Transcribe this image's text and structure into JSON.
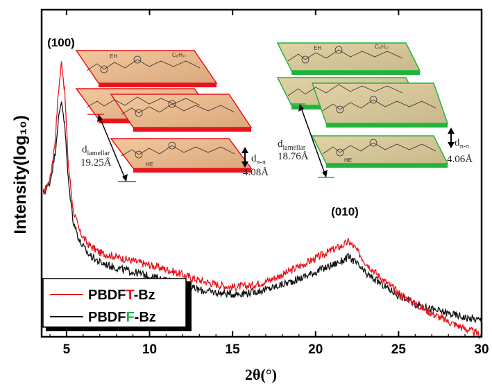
{
  "chart_data": {
    "type": "line",
    "xlabel": "2θ(°)",
    "ylabel": "Intensity(log₁₀)",
    "xlim": [
      3.5,
      30
    ],
    "xticks": [
      5,
      10,
      15,
      20,
      25,
      30
    ],
    "y_scale": "log",
    "y_tick_labels": "none",
    "grid": false,
    "legend_position": "bottom-left",
    "peak_labels": [
      {
        "text": "(100)",
        "x": 4.7
      },
      {
        "text": "(010)",
        "x": 22.0
      }
    ],
    "series": [
      {
        "name_prefix": "PBDF",
        "name_highlight": "T",
        "name_suffix": "-Bz",
        "color": "#e8141b",
        "highlight_color": "#e8141b",
        "x": [
          3.6,
          4.0,
          4.3,
          4.5,
          4.7,
          4.9,
          5.1,
          5.4,
          5.8,
          6.3,
          7,
          8,
          9,
          10,
          11,
          12,
          13,
          14,
          15,
          16,
          17,
          18,
          19,
          20,
          21,
          21.6,
          22.0,
          22.4,
          23,
          24,
          25,
          26,
          27,
          28,
          29,
          30
        ],
        "y": [
          0.52,
          0.57,
          0.7,
          0.88,
          1.0,
          0.88,
          0.63,
          0.46,
          0.38,
          0.335,
          0.305,
          0.29,
          0.275,
          0.26,
          0.245,
          0.225,
          0.205,
          0.19,
          0.18,
          0.185,
          0.2,
          0.225,
          0.255,
          0.285,
          0.315,
          0.33,
          0.345,
          0.32,
          0.27,
          0.21,
          0.16,
          0.12,
          0.085,
          0.055,
          0.03,
          0.005
        ]
      },
      {
        "name_prefix": "PBDF",
        "name_highlight": "F",
        "name_suffix": "-Bz",
        "color": "#111111",
        "highlight_color": "#1fb53a",
        "x": [
          3.6,
          4.0,
          4.3,
          4.5,
          4.7,
          4.9,
          5.1,
          5.4,
          5.8,
          6.3,
          7,
          8,
          9,
          10,
          11,
          12,
          13,
          14,
          15,
          16,
          17,
          18,
          19,
          20,
          21,
          21.6,
          22.0,
          22.4,
          23,
          24,
          25,
          26,
          27,
          28,
          29,
          30
        ],
        "y": [
          0.52,
          0.56,
          0.66,
          0.78,
          0.86,
          0.76,
          0.57,
          0.42,
          0.345,
          0.3,
          0.27,
          0.25,
          0.235,
          0.22,
          0.205,
          0.185,
          0.17,
          0.16,
          0.155,
          0.16,
          0.17,
          0.19,
          0.21,
          0.235,
          0.26,
          0.275,
          0.29,
          0.27,
          0.23,
          0.19,
          0.15,
          0.12,
          0.1,
          0.085,
          0.07,
          0.06
        ]
      }
    ],
    "insets": [
      {
        "color": "#e8141b",
        "d_lamellar_label": "d",
        "d_lamellar_sub": "lamellar",
        "d_lamellar_value": "19.25Å",
        "d_pi_label": "d",
        "d_pi_sub": "π-π",
        "d_pi_value": "4.08Å"
      },
      {
        "color": "#1fb53a",
        "d_lamellar_label": "d",
        "d_lamellar_sub": "lamellar",
        "d_lamellar_value": "18.76Å",
        "d_pi_label": "d",
        "d_pi_sub": "π-π",
        "d_pi_value": "4.06Å"
      }
    ],
    "molecule_labels": {
      "eh": "EH",
      "he": "HE",
      "side_chain": "C₈H₁₇"
    }
  }
}
